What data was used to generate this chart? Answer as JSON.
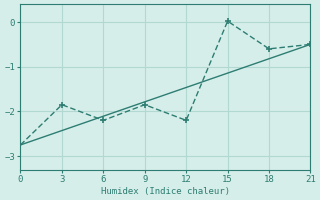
{
  "line1_x": [
    0,
    3,
    6,
    9,
    12,
    15,
    18,
    21
  ],
  "line1_y": [
    -2.75,
    -1.85,
    -2.2,
    -1.85,
    -2.2,
    0.02,
    -0.6,
    -0.5
  ],
  "line1_marker_x": [
    3,
    6,
    9,
    12,
    15,
    18,
    21
  ],
  "line1_marker_y": [
    -1.85,
    -2.2,
    -1.85,
    -2.2,
    0.02,
    -0.6,
    -0.5
  ],
  "line2_x": [
    0,
    21
  ],
  "line2_y": [
    -2.75,
    -0.5
  ],
  "line_color": "#2d7d72",
  "bg_color": "#d6eeea",
  "xlabel": "Humidex (Indice chaleur)",
  "xlim": [
    0,
    21
  ],
  "ylim": [
    -3.3,
    0.4
  ],
  "xticks": [
    0,
    3,
    6,
    9,
    12,
    15,
    18,
    21
  ],
  "yticks": [
    0,
    -1,
    -2,
    -3
  ],
  "grid_color": "#b2d8d2",
  "tick_fontsize": 6.5
}
